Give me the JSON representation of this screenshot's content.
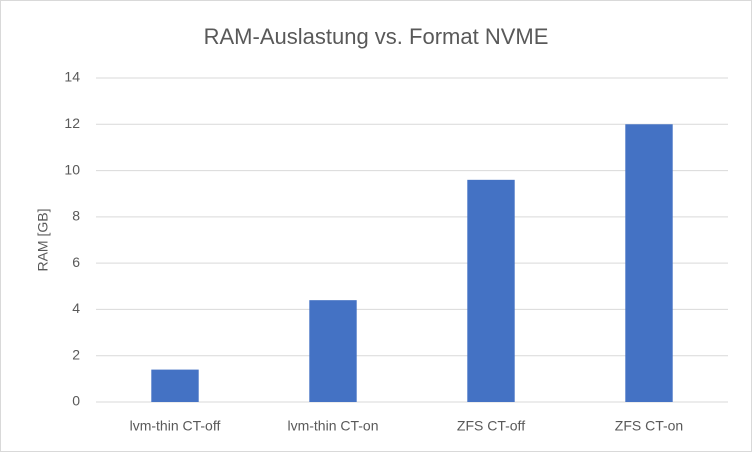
{
  "chart_data": {
    "type": "bar",
    "title": "RAM-Auslastung vs. Format NVME",
    "y_label": "RAM [GB]",
    "categories": [
      "lvm-thin CT-off",
      "lvm-thin CT-on",
      "ZFS CT-off",
      "ZFS CT-on"
    ],
    "values": [
      1.4,
      4.4,
      9.6,
      12
    ],
    "color": "#4472c4",
    "ylim": [
      0,
      14
    ],
    "yticks": [
      0,
      2,
      4,
      6,
      8,
      10,
      12,
      14
    ],
    "grid": true
  }
}
